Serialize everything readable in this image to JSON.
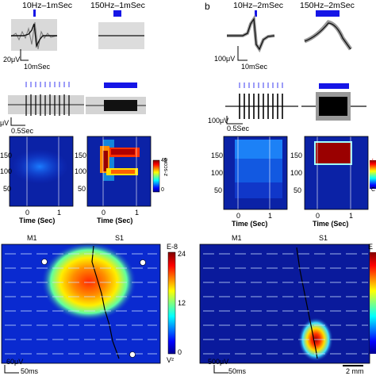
{
  "panel_b_letter": "b",
  "stim_titles": [
    "10Hz–1mSec",
    "150Hz–1mSec",
    "10Hz–2mSec",
    "150Hz–2mSec"
  ],
  "scale_labels": {
    "wave_amp_a": "20μV",
    "wave_time_a": "10mSec",
    "wave_amp_b": "100μV",
    "wave_time_b": "10mSec",
    "train_amp_a": "μV",
    "train_time_a": "0.5Sec",
    "train_amp_b": "100μV",
    "train_time_b": "0.5Sec",
    "map_amp_a": "60μV",
    "map_time_a": "50ms",
    "map_amp_b": "500μV",
    "map_time_b": "50ms",
    "distance": "2 mm"
  },
  "heatmaps": {
    "y_ticks": [
      "150",
      "100",
      "50"
    ],
    "x_ticks": [
      "0",
      "1"
    ],
    "xlabel": "Time (Sec)",
    "colorbar_label": "z-score",
    "colorbar_ticks": [
      "45",
      "0"
    ],
    "colorbar_ticks_b": [
      "↑",
      "C"
    ]
  },
  "maps": {
    "region_labels_a": [
      "M1",
      "S1"
    ],
    "region_labels_b": [
      "M1",
      "S1"
    ],
    "colorbar_ticks": [
      "24",
      "12",
      "0"
    ],
    "colorbar_exp": "E-8",
    "colorbar_unit": "V²",
    "colorbar_exp_b": "E"
  },
  "colors": {
    "stim_blue": "#1515e6",
    "jet_low": "#0a1a9c",
    "jet_high": "#a00000"
  }
}
